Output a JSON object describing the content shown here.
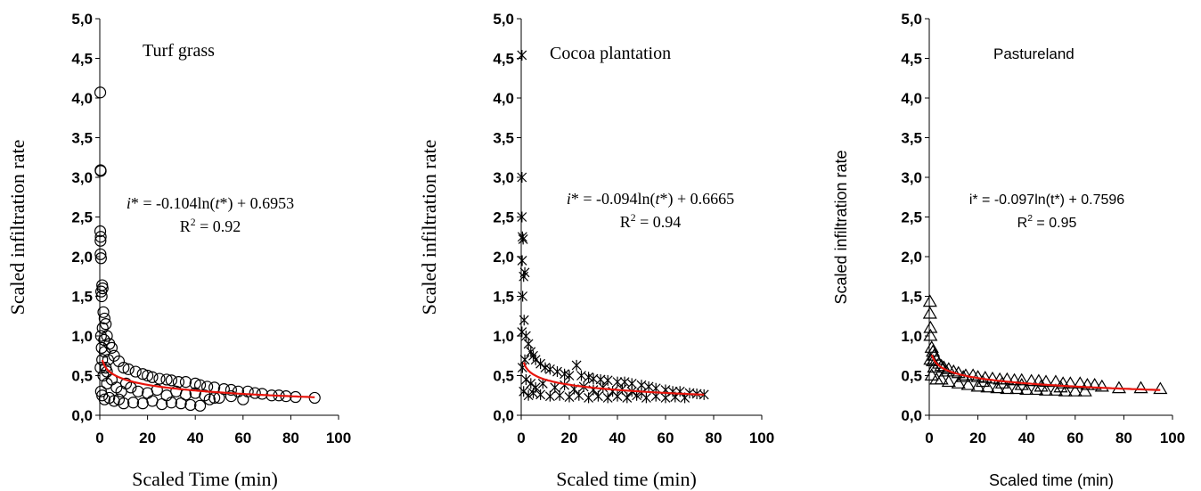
{
  "chart_data": [
    {
      "type": "scatter",
      "panel_label": "Turf grass",
      "xlabel": "Scaled Time (min)",
      "ylabel": "Scaled infiltration rate",
      "xlim": [
        0,
        100
      ],
      "ylim": [
        0,
        5
      ],
      "x_ticks": [
        "0",
        "20",
        "40",
        "60",
        "80",
        "100"
      ],
      "y_ticks": [
        "0,0",
        "0,5",
        "1,0",
        "1,5",
        "2,0",
        "2,5",
        "3,0",
        "3,5",
        "4,0",
        "4,5",
        "5,0"
      ],
      "marker": "circle",
      "grid": false,
      "fit": {
        "a": -0.104,
        "b": 0.6953,
        "model": "log",
        "color": "#e8140c"
      },
      "equation": {
        "var": "i",
        "text": "* = -0.104ln(",
        "t": "t",
        "tail": "*) + 0.6953"
      },
      "r2": {
        "prefix": "R",
        "sup": "2",
        "suffix": " = 0.92"
      },
      "points": [
        [
          0.2,
          4.07
        ],
        [
          0.3,
          3.09
        ],
        [
          0.4,
          3.08
        ],
        [
          0.2,
          2.32
        ],
        [
          0.4,
          2.25
        ],
        [
          0.3,
          2.2
        ],
        [
          0.3,
          2.03
        ],
        [
          0.5,
          1.98
        ],
        [
          1.0,
          1.64
        ],
        [
          1.2,
          1.6
        ],
        [
          0.6,
          1.56
        ],
        [
          0.8,
          1.5
        ],
        [
          1.5,
          1.3
        ],
        [
          2.0,
          1.22
        ],
        [
          2.5,
          1.15
        ],
        [
          1.2,
          1.1
        ],
        [
          0.5,
          1.0
        ],
        [
          3.0,
          1.0
        ],
        [
          4.0,
          0.9
        ],
        [
          5.0,
          0.85
        ],
        [
          2.0,
          0.8
        ],
        [
          6.0,
          0.75
        ],
        [
          1.0,
          0.7
        ],
        [
          8.0,
          0.68
        ],
        [
          0.3,
          0.6
        ],
        [
          3.0,
          0.55
        ],
        [
          10.0,
          0.6
        ],
        [
          12.0,
          0.58
        ],
        [
          15.0,
          0.55
        ],
        [
          18.0,
          0.52
        ],
        [
          20.0,
          0.5
        ],
        [
          22.0,
          0.48
        ],
        [
          25.0,
          0.46
        ],
        [
          28.0,
          0.45
        ],
        [
          30.0,
          0.44
        ],
        [
          33.0,
          0.42
        ],
        [
          36.0,
          0.42
        ],
        [
          40.0,
          0.4
        ],
        [
          42.0,
          0.38
        ],
        [
          45.0,
          0.36
        ],
        [
          48.0,
          0.35
        ],
        [
          52.0,
          0.33
        ],
        [
          55.0,
          0.32
        ],
        [
          58.0,
          0.3
        ],
        [
          62.0,
          0.3
        ],
        [
          65.0,
          0.28
        ],
        [
          68.0,
          0.27
        ],
        [
          72.0,
          0.25
        ],
        [
          75.0,
          0.25
        ],
        [
          78.0,
          0.24
        ],
        [
          82.0,
          0.23
        ],
        [
          90.0,
          0.22
        ],
        [
          0.5,
          0.3
        ],
        [
          1.0,
          0.25
        ],
        [
          2.0,
          0.2
        ],
        [
          4.0,
          0.22
        ],
        [
          6.0,
          0.18
        ],
        [
          8.0,
          0.2
        ],
        [
          10.0,
          0.15
        ],
        [
          14.0,
          0.16
        ],
        [
          18.0,
          0.15
        ],
        [
          22.0,
          0.18
        ],
        [
          26.0,
          0.14
        ],
        [
          30.0,
          0.16
        ],
        [
          34.0,
          0.15
        ],
        [
          38.0,
          0.13
        ],
        [
          42.0,
          0.12
        ],
        [
          46.0,
          0.2
        ],
        [
          50.0,
          0.22
        ],
        [
          55.0,
          0.24
        ],
        [
          60.0,
          0.2
        ],
        [
          3.0,
          0.4
        ],
        [
          5.0,
          0.45
        ],
        [
          7.0,
          0.35
        ],
        [
          9.0,
          0.3
        ],
        [
          11.0,
          0.4
        ],
        [
          13.0,
          0.35
        ],
        [
          16.0,
          0.3
        ],
        [
          20.0,
          0.28
        ],
        [
          24.0,
          0.32
        ],
        [
          28.0,
          0.25
        ],
        [
          32.0,
          0.3
        ],
        [
          36.0,
          0.26
        ],
        [
          40.0,
          0.28
        ],
        [
          44.0,
          0.25
        ],
        [
          48.0,
          0.22
        ],
        [
          1.5,
          0.5
        ],
        [
          2.5,
          0.6
        ],
        [
          3.5,
          0.7
        ],
        [
          0.8,
          0.85
        ],
        [
          1.8,
          0.95
        ]
      ]
    },
    {
      "type": "scatter",
      "panel_label": "Cocoa plantation",
      "xlabel": "Scaled time (min)",
      "ylabel": "Scaled infiltration rate",
      "xlim": [
        0,
        100
      ],
      "ylim": [
        0,
        5
      ],
      "x_ticks": [
        "0",
        "20",
        "40",
        "60",
        "80",
        "100"
      ],
      "y_ticks": [
        "0,0",
        "0,5",
        "1,0",
        "1,5",
        "2,0",
        "2,5",
        "3,0",
        "3,5",
        "4,0",
        "4,5",
        "5,0"
      ],
      "marker": "x",
      "grid": false,
      "fit": {
        "a": -0.094,
        "b": 0.6665,
        "model": "log",
        "color": "#e8140c"
      },
      "equation": {
        "var": "i",
        "text": "* = -0.094ln(",
        "t": "t",
        "tail": "*) + 0.6665"
      },
      "r2": {
        "prefix": "R",
        "sup": "2",
        "suffix": " = 0.94"
      },
      "points": [
        [
          0.3,
          4.54
        ],
        [
          0.3,
          3.0
        ],
        [
          0.3,
          2.5
        ],
        [
          0.5,
          2.25
        ],
        [
          0.8,
          2.22
        ],
        [
          0.4,
          1.95
        ],
        [
          1.5,
          1.8
        ],
        [
          1.0,
          1.75
        ],
        [
          0.6,
          1.5
        ],
        [
          1.2,
          1.2
        ],
        [
          0.3,
          1.05
        ],
        [
          2.0,
          1.0
        ],
        [
          3.0,
          0.9
        ],
        [
          4.0,
          0.8
        ],
        [
          5.0,
          0.75
        ],
        [
          6.0,
          0.7
        ],
        [
          8.0,
          0.65
        ],
        [
          10.0,
          0.6
        ],
        [
          12.0,
          0.58
        ],
        [
          15.0,
          0.55
        ],
        [
          18.0,
          0.52
        ],
        [
          20.0,
          0.5
        ],
        [
          23.0,
          0.63
        ],
        [
          25.0,
          0.5
        ],
        [
          28.0,
          0.48
        ],
        [
          30.0,
          0.46
        ],
        [
          33.0,
          0.45
        ],
        [
          36.0,
          0.44
        ],
        [
          40.0,
          0.42
        ],
        [
          43.0,
          0.42
        ],
        [
          46.0,
          0.4
        ],
        [
          50.0,
          0.38
        ],
        [
          53.0,
          0.36
        ],
        [
          56.0,
          0.34
        ],
        [
          60.0,
          0.32
        ],
        [
          63.0,
          0.3
        ],
        [
          66.0,
          0.3
        ],
        [
          70.0,
          0.28
        ],
        [
          73.0,
          0.27
        ],
        [
          76.0,
          0.26
        ],
        [
          1.0,
          0.3
        ],
        [
          3.0,
          0.25
        ],
        [
          5.0,
          0.28
        ],
        [
          8.0,
          0.26
        ],
        [
          12.0,
          0.24
        ],
        [
          16.0,
          0.25
        ],
        [
          20.0,
          0.23
        ],
        [
          24.0,
          0.25
        ],
        [
          28.0,
          0.22
        ],
        [
          32.0,
          0.24
        ],
        [
          36.0,
          0.22
        ],
        [
          40.0,
          0.24
        ],
        [
          44.0,
          0.22
        ],
        [
          48.0,
          0.25
        ],
        [
          52.0,
          0.22
        ],
        [
          56.0,
          0.24
        ],
        [
          60.0,
          0.22
        ],
        [
          64.0,
          0.23
        ],
        [
          68.0,
          0.22
        ],
        [
          2.0,
          0.45
        ],
        [
          4.0,
          0.4
        ],
        [
          6.0,
          0.35
        ],
        [
          9.0,
          0.4
        ],
        [
          14.0,
          0.35
        ],
        [
          18.0,
          0.38
        ],
        [
          22.0,
          0.33
        ],
        [
          26.0,
          0.36
        ],
        [
          30.0,
          0.32
        ],
        [
          34.0,
          0.35
        ],
        [
          38.0,
          0.3
        ],
        [
          42.0,
          0.33
        ],
        [
          46.0,
          0.3
        ],
        [
          50.0,
          0.28
        ],
        [
          0.5,
          0.6
        ],
        [
          1.5,
          0.7
        ]
      ]
    },
    {
      "type": "scatter",
      "panel_label": "Pastureland",
      "xlabel": "Scaled time (min)",
      "ylabel": "Scaled infiltration rate",
      "xlim": [
        0,
        100
      ],
      "ylim": [
        0,
        5
      ],
      "x_ticks": [
        "0",
        "20",
        "40",
        "60",
        "80",
        "100"
      ],
      "y_ticks": [
        "0,0",
        "0,5",
        "1,0",
        "1,5",
        "2,0",
        "2,5",
        "3,0",
        "3,5",
        "4,0",
        "4,5",
        "5,0"
      ],
      "marker": "triangle",
      "grid": false,
      "fit": {
        "a": -0.097,
        "b": 0.7596,
        "model": "log",
        "color": "#e8140c"
      },
      "equation": {
        "var": "i",
        "text": "* = -0.097ln(",
        "t": "t",
        "tail": "*) + 0.7596"
      },
      "r2": {
        "prefix": "R",
        "sup": "2",
        "suffix": " = 0.95"
      },
      "points": [
        [
          0.3,
          1.43
        ],
        [
          0.3,
          1.28
        ],
        [
          0.5,
          1.1
        ],
        [
          0.5,
          1.0
        ],
        [
          1.0,
          0.85
        ],
        [
          1.5,
          0.8
        ],
        [
          2.0,
          0.75
        ],
        [
          3.0,
          0.7
        ],
        [
          4.0,
          0.65
        ],
        [
          5.0,
          0.62
        ],
        [
          6.0,
          0.6
        ],
        [
          8.0,
          0.58
        ],
        [
          10.0,
          0.55
        ],
        [
          12.0,
          0.53
        ],
        [
          15.0,
          0.5
        ],
        [
          18.0,
          0.5
        ],
        [
          20.0,
          0.48
        ],
        [
          23.0,
          0.47
        ],
        [
          26.0,
          0.46
        ],
        [
          29.0,
          0.45
        ],
        [
          32.0,
          0.45
        ],
        [
          35.0,
          0.44
        ],
        [
          38.0,
          0.44
        ],
        [
          42.0,
          0.43
        ],
        [
          45.0,
          0.43
        ],
        [
          48.0,
          0.42
        ],
        [
          52.0,
          0.42
        ],
        [
          55.0,
          0.4
        ],
        [
          58.0,
          0.4
        ],
        [
          62.0,
          0.4
        ],
        [
          65.0,
          0.38
        ],
        [
          68.0,
          0.38
        ],
        [
          71.0,
          0.36
        ],
        [
          78.0,
          0.34
        ],
        [
          87.0,
          0.34
        ],
        [
          95.0,
          0.33
        ],
        [
          1.0,
          0.5
        ],
        [
          3.0,
          0.45
        ],
        [
          5.0,
          0.45
        ],
        [
          8.0,
          0.42
        ],
        [
          12.0,
          0.4
        ],
        [
          16.0,
          0.38
        ],
        [
          20.0,
          0.36
        ],
        [
          24.0,
          0.35
        ],
        [
          28.0,
          0.34
        ],
        [
          32.0,
          0.33
        ],
        [
          36.0,
          0.33
        ],
        [
          40.0,
          0.32
        ],
        [
          44.0,
          0.32
        ],
        [
          48.0,
          0.31
        ],
        [
          52.0,
          0.31
        ],
        [
          56.0,
          0.3
        ],
        [
          60.0,
          0.3
        ],
        [
          64.0,
          0.3
        ],
        [
          2.0,
          0.6
        ],
        [
          7.0,
          0.55
        ],
        [
          14.0,
          0.48
        ],
        [
          22.0,
          0.42
        ],
        [
          30.0,
          0.4
        ],
        [
          38.0,
          0.38
        ],
        [
          46.0,
          0.36
        ],
        [
          54.0,
          0.35
        ],
        [
          0.5,
          0.7
        ],
        [
          1.5,
          0.68
        ]
      ]
    }
  ]
}
